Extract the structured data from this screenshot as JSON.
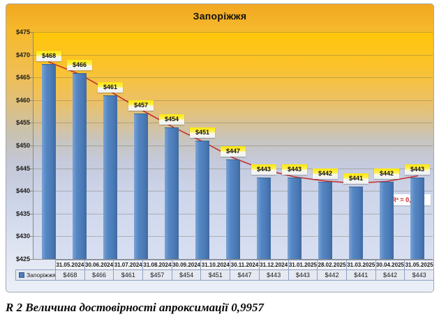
{
  "caption": "R 2 Величина достовірності апроксимації 0,9957",
  "colors": {
    "bar": "#4E7FBC",
    "trendline": "#C53030",
    "r2_text": "#CC1F1F",
    "label_highlight": "#FFE70A",
    "chart_top": "#F2A820",
    "chart_bottom": "#EBEFF7",
    "table_border": "#8FA0C2"
  },
  "chart_data": {
    "type": "bar",
    "title": "Запоріжжя",
    "categories": [
      "31.05.2024",
      "30.06.2024",
      "31.07.2024",
      "31.08.2024",
      "30.09.2024",
      "31.10.2024",
      "30.11.2024",
      "31.12.2024",
      "31.01.2025",
      "28.02.2025",
      "31.03.2025",
      "30.04.2025",
      "31.05.2025"
    ],
    "series": [
      {
        "name": "Запоріжжя",
        "values": [
          468,
          466,
          461,
          457,
          454,
          451,
          447,
          443,
          443,
          442,
          441,
          442,
          443
        ],
        "labels": [
          "$468",
          "$466",
          "$461",
          "$457",
          "$454",
          "$451",
          "$447",
          "$443",
          "$443",
          "$442",
          "$441",
          "$442",
          "$443"
        ]
      }
    ],
    "ylim": [
      425,
      475
    ],
    "ytick_step": 5,
    "ytick_labels": [
      "$475",
      "$470",
      "$465",
      "$460",
      "$455",
      "$450",
      "$445",
      "$440",
      "$435",
      "$430",
      "$425"
    ],
    "grid": true,
    "legend_position": "data-table-left",
    "trendline": {
      "type": "polynomial",
      "r2_label": "R² = 0,9957",
      "values": [
        468.4,
        465.7,
        461.9,
        457.9,
        454.2,
        450.9,
        447.3,
        444.7,
        443.1,
        442.2,
        441.7,
        442.1,
        443.3
      ]
    }
  }
}
